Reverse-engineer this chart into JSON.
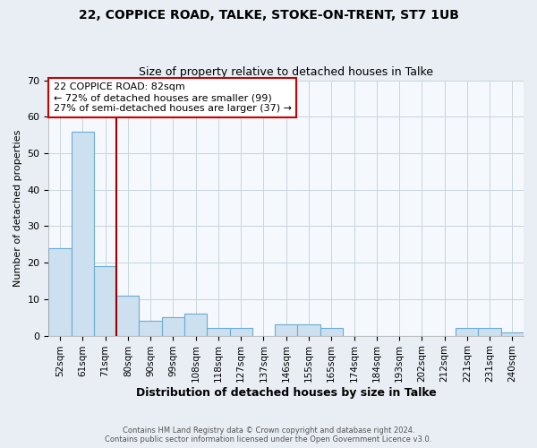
{
  "title1": "22, COPPICE ROAD, TALKE, STOKE-ON-TRENT, ST7 1UB",
  "title2": "Size of property relative to detached houses in Talke",
  "xlabel": "Distribution of detached houses by size in Talke",
  "ylabel": "Number of detached properties",
  "bin_labels": [
    "52sqm",
    "61sqm",
    "71sqm",
    "80sqm",
    "90sqm",
    "99sqm",
    "108sqm",
    "118sqm",
    "127sqm",
    "137sqm",
    "146sqm",
    "155sqm",
    "165sqm",
    "174sqm",
    "184sqm",
    "193sqm",
    "202sqm",
    "212sqm",
    "221sqm",
    "231sqm",
    "240sqm"
  ],
  "bar_heights": [
    24,
    56,
    19,
    11,
    4,
    5,
    6,
    2,
    2,
    0,
    3,
    3,
    2,
    0,
    0,
    0,
    0,
    0,
    2,
    2,
    1
  ],
  "bar_color": "#cce0f0",
  "bar_edge_color": "#6aacd4",
  "ylim": [
    0,
    70
  ],
  "yticks": [
    0,
    10,
    20,
    30,
    40,
    50,
    60,
    70
  ],
  "vline_color": "#990000",
  "annotation_text": "22 COPPICE ROAD: 82sqm\n← 72% of detached houses are smaller (99)\n27% of semi-detached houses are larger (37) →",
  "annotation_box_color": "#ffffff",
  "annotation_box_edge": "#cc0000",
  "footer1": "Contains HM Land Registry data © Crown copyright and database right 2024.",
  "footer2": "Contains public sector information licensed under the Open Government Licence v3.0.",
  "bg_color": "#e8eef4",
  "plot_bg_color": "#f5f8fc",
  "grid_color": "#c8d4e0"
}
